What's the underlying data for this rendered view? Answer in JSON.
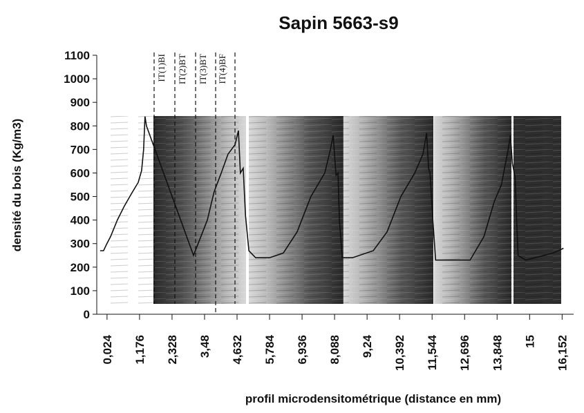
{
  "chart_data": {
    "type": "line",
    "title": "Sapin 5663-s9",
    "x_label": "profil microdensitométrique (distance en mm)",
    "y_label": "densité du bois (Kg/m3)",
    "annotations": [
      "IT(1)BI",
      "IT(2)BT",
      "IT(3)BT",
      "IT(4)BF"
    ],
    "xlim": [
      -0.34,
      16.56
    ],
    "ylim": [
      0,
      1100
    ],
    "yticks": [
      0,
      100,
      200,
      300,
      400,
      500,
      600,
      700,
      800,
      900,
      1000,
      1100
    ],
    "xticks": [
      {
        "value": 0.024,
        "label": "0,024"
      },
      {
        "value": 1.176,
        "label": "1,176"
      },
      {
        "value": 2.328,
        "label": "2,328"
      },
      {
        "value": 3.48,
        "label": "3,48"
      },
      {
        "value": 4.632,
        "label": "4,632"
      },
      {
        "value": 5.784,
        "label": "5,784"
      },
      {
        "value": 6.936,
        "label": "6,936"
      },
      {
        "value": 8.088,
        "label": "8,088"
      },
      {
        "value": 9.24,
        "label": "9,24"
      },
      {
        "value": 10.392,
        "label": "10,392"
      },
      {
        "value": 11.544,
        "label": "11,544"
      },
      {
        "value": 12.696,
        "label": "12,696"
      },
      {
        "value": 13.848,
        "label": "13,848"
      },
      15,
      {
        "value": 16.152,
        "label": "16,152"
      }
    ],
    "x": [
      -0.22,
      -0.1,
      0.02,
      0.15,
      0.39,
      0.64,
      0.88,
      1.13,
      1.25,
      1.32,
      1.37,
      1.42,
      3.09,
      3.58,
      3.82,
      4.07,
      4.31,
      4.56,
      4.68,
      4.75,
      4.85,
      4.93,
      5.05,
      5.29,
      5.78,
      6.27,
      6.76,
      7.25,
      7.74,
      7.94,
      8.04,
      8.14,
      8.21,
      8.26,
      8.36,
      8.72,
      9.46,
      9.95,
      10.44,
      10.93,
      11.22,
      11.35,
      11.42,
      11.47,
      11.57,
      11.67,
      12.4,
      12.89,
      13.38,
      13.75,
      14.0,
      14.24,
      14.32,
      14.39,
      14.49,
      14.54,
      14.59,
      14.86,
      15.83,
      16.2
    ],
    "series": [
      {
        "color": "#111111",
        "values": [
          270,
          270,
          300,
          330,
          400,
          460,
          510,
          560,
          610,
          700,
          840,
          800,
          250,
          400,
          520,
          600,
          680,
          720,
          780,
          600,
          620,
          420,
          270,
          240,
          240,
          260,
          350,
          500,
          600,
          700,
          760,
          590,
          600,
          400,
          240,
          240,
          270,
          350,
          500,
          600,
          680,
          770,
          620,
          600,
          400,
          230,
          230,
          230,
          330,
          480,
          550,
          700,
          760,
          640,
          580,
          400,
          250,
          230,
          260,
          280
        ]
      }
    ]
  }
}
